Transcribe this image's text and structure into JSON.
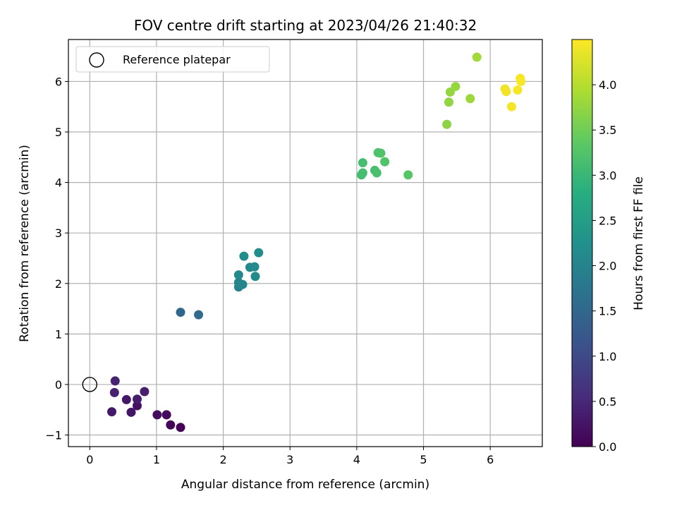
{
  "chart_data": {
    "type": "scatter",
    "title": "FOV centre drift starting at 2023/04/26 21:40:32",
    "xlabel": "Angular distance from reference (arcmin)",
    "ylabel": "Rotation from reference (arcmin)",
    "xlim": [
      -0.32,
      6.78
    ],
    "ylim": [
      -1.23,
      6.83
    ],
    "xticks": [
      0,
      1,
      2,
      3,
      4,
      5,
      6
    ],
    "yticks": [
      -1,
      0,
      1,
      2,
      3,
      4,
      5,
      6
    ],
    "grid": true,
    "legend": {
      "placement": "top-left",
      "entries": [
        "Reference platepar"
      ]
    },
    "reference_point": {
      "x": 0,
      "y": 0
    },
    "colorbar": {
      "label": "Hours from first FF file",
      "range": [
        0.0,
        4.5
      ],
      "ticks": [
        "0.0",
        "0.5",
        "1.0",
        "1.5",
        "2.0",
        "2.5",
        "3.0",
        "3.5",
        "4.0"
      ],
      "colormap": "viridis"
    },
    "points": [
      {
        "x": 1.36,
        "y": -0.85,
        "t": 0.02
      },
      {
        "x": 1.21,
        "y": -0.8,
        "t": 0.06
      },
      {
        "x": 1.15,
        "y": -0.6,
        "t": 0.1
      },
      {
        "x": 1.01,
        "y": -0.6,
        "t": 0.15
      },
      {
        "x": 0.71,
        "y": -0.42,
        "t": 0.22
      },
      {
        "x": 0.62,
        "y": -0.55,
        "t": 0.25
      },
      {
        "x": 0.33,
        "y": -0.54,
        "t": 0.3
      },
      {
        "x": 0.55,
        "y": -0.3,
        "t": 0.28
      },
      {
        "x": 0.71,
        "y": -0.29,
        "t": 0.35
      },
      {
        "x": 0.82,
        "y": -0.14,
        "t": 0.38
      },
      {
        "x": 0.37,
        "y": -0.16,
        "t": 0.42
      },
      {
        "x": 0.38,
        "y": 0.07,
        "t": 0.45
      },
      {
        "x": 1.36,
        "y": 1.43,
        "t": 1.52
      },
      {
        "x": 1.63,
        "y": 1.38,
        "t": 1.58
      },
      {
        "x": 2.23,
        "y": 1.93,
        "t": 2.0
      },
      {
        "x": 2.23,
        "y": 2.02,
        "t": 2.02
      },
      {
        "x": 2.29,
        "y": 1.98,
        "t": 2.05
      },
      {
        "x": 2.23,
        "y": 2.17,
        "t": 2.08
      },
      {
        "x": 2.4,
        "y": 2.32,
        "t": 2.1
      },
      {
        "x": 2.47,
        "y": 2.33,
        "t": 2.12
      },
      {
        "x": 2.48,
        "y": 2.14,
        "t": 2.15
      },
      {
        "x": 2.31,
        "y": 2.54,
        "t": 2.18
      },
      {
        "x": 2.53,
        "y": 2.61,
        "t": 2.2
      },
      {
        "x": 4.07,
        "y": 4.15,
        "t": 3.1
      },
      {
        "x": 4.09,
        "y": 4.19,
        "t": 3.12
      },
      {
        "x": 4.09,
        "y": 4.39,
        "t": 3.14
      },
      {
        "x": 4.27,
        "y": 4.24,
        "t": 3.16
      },
      {
        "x": 4.3,
        "y": 4.19,
        "t": 3.18
      },
      {
        "x": 4.32,
        "y": 4.59,
        "t": 3.2
      },
      {
        "x": 4.36,
        "y": 4.58,
        "t": 3.22
      },
      {
        "x": 4.42,
        "y": 4.41,
        "t": 3.24
      },
      {
        "x": 4.77,
        "y": 4.15,
        "t": 3.3
      },
      {
        "x": 5.35,
        "y": 5.15,
        "t": 3.7
      },
      {
        "x": 5.38,
        "y": 5.59,
        "t": 3.74
      },
      {
        "x": 5.4,
        "y": 5.79,
        "t": 3.76
      },
      {
        "x": 5.48,
        "y": 5.9,
        "t": 3.78
      },
      {
        "x": 5.7,
        "y": 5.66,
        "t": 3.82
      },
      {
        "x": 5.8,
        "y": 6.48,
        "t": 3.85
      },
      {
        "x": 6.22,
        "y": 5.85,
        "t": 4.4
      },
      {
        "x": 6.24,
        "y": 5.8,
        "t": 4.42
      },
      {
        "x": 6.32,
        "y": 5.5,
        "t": 4.44
      },
      {
        "x": 6.41,
        "y": 5.83,
        "t": 4.45
      },
      {
        "x": 6.45,
        "y": 6.06,
        "t": 4.46
      },
      {
        "x": 6.46,
        "y": 6.0,
        "t": 4.47
      }
    ]
  }
}
